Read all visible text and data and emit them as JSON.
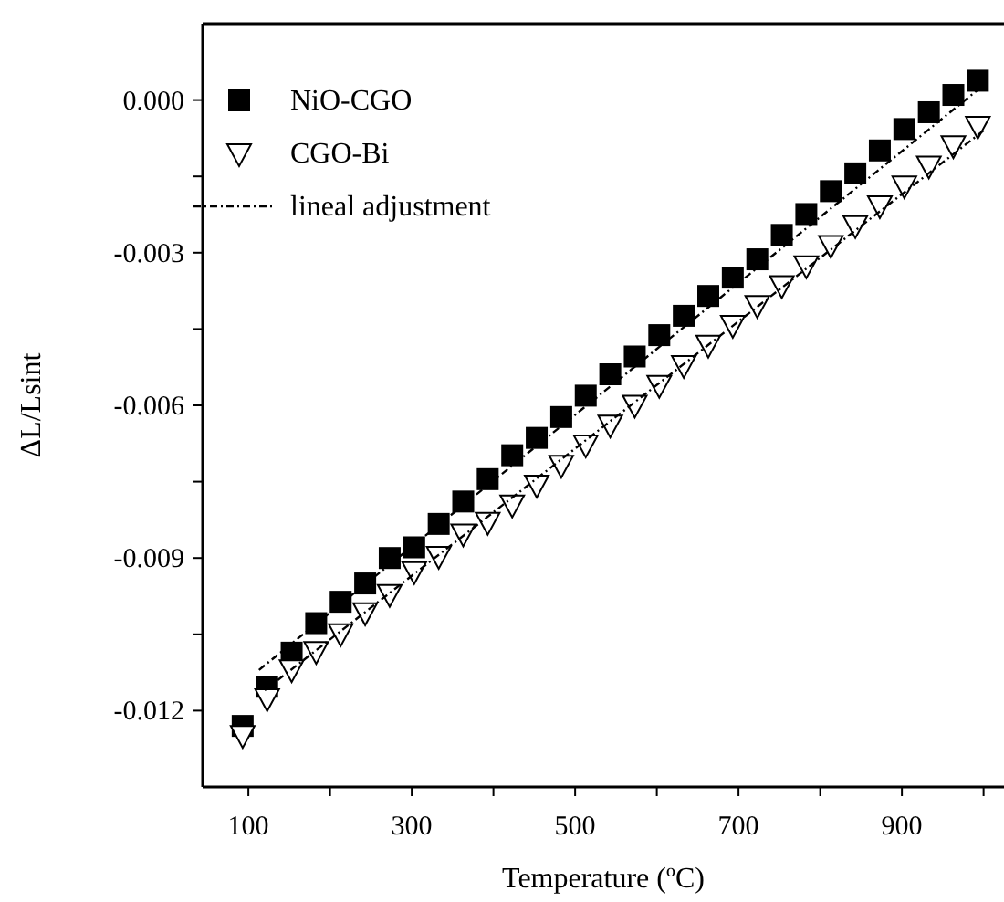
{
  "chart_data": {
    "type": "scatter",
    "xlabel": "Temperature (ºC)",
    "ylabel": "ΔL/Lsint",
    "xlim": [
      44,
      1025
    ],
    "ylim": [
      -0.0135,
      0.0015
    ],
    "xticks": [
      100,
      {
        "value": 200,
        "label": null
      },
      300,
      {
        "value": 400,
        "label": null
      },
      500,
      {
        "value": 600,
        "label": null
      },
      700,
      {
        "value": 800,
        "label": null
      },
      900,
      {
        "value": 1000,
        "label": null
      }
    ],
    "yticks": [
      {
        "value": 0,
        "label": "0.000"
      },
      {
        "value": -0.0015,
        "label": null
      },
      -0.003,
      {
        "value": -0.0045,
        "label": null
      },
      -0.006,
      {
        "value": -0.0075,
        "label": null
      },
      -0.009,
      {
        "value": -0.0105,
        "label": null
      },
      -0.012
    ],
    "x": [
      93,
      123,
      153,
      183,
      213,
      243,
      273,
      303,
      333,
      363,
      393,
      423,
      453,
      483,
      513,
      543,
      573,
      603,
      633,
      663,
      693,
      723,
      753,
      783,
      813,
      843,
      873,
      903,
      933,
      963,
      993
    ],
    "legend": "top left",
    "grid": false,
    "series": [
      {
        "name": "NiO-CGO",
        "marker": "square",
        "color": "#000000",
        "values": [
          -0.0123,
          -0.01153,
          -0.01086,
          -0.01028,
          -0.00986,
          -0.0095,
          -0.009,
          -0.00879,
          -0.00833,
          -0.00789,
          -0.00745,
          -0.00698,
          -0.00664,
          -0.00623,
          -0.00581,
          -0.00539,
          -0.00504,
          -0.00462,
          -0.00424,
          -0.00385,
          -0.00349,
          -0.00313,
          -0.00265,
          -0.00224,
          -0.00179,
          -0.00144,
          -0.00099,
          -0.00057,
          -0.00024,
          0.0001,
          0.00038
        ]
      },
      {
        "name": "CGO-Bi",
        "marker": "triangle",
        "color": "#000000",
        "values": [
          -0.01248,
          -0.01176,
          -0.01119,
          -0.01083,
          -0.01048,
          -0.01007,
          -0.00971,
          -0.00926,
          -0.00896,
          -0.00852,
          -0.00829,
          -0.00795,
          -0.00756,
          -0.00717,
          -0.00677,
          -0.00638,
          -0.00599,
          -0.0056,
          -0.00521,
          -0.00481,
          -0.00442,
          -0.00403,
          -0.00364,
          -0.00325,
          -0.00285,
          -0.00246,
          -0.00207,
          -0.00168,
          -0.00129,
          -0.00089,
          -0.00051
        ]
      },
      {
        "name": "lineal adjustment",
        "type": "line",
        "line_style": "dashed",
        "color": "#000000",
        "x": [
          113,
          993
        ],
        "values": [
          -0.0112,
          0.0002
        ]
      },
      {
        "type": "line",
        "line_style": "dashed",
        "color": "#000000",
        "x": [
          120,
          1000
        ],
        "values": [
          -0.0116,
          -0.0006
        ]
      }
    ]
  }
}
